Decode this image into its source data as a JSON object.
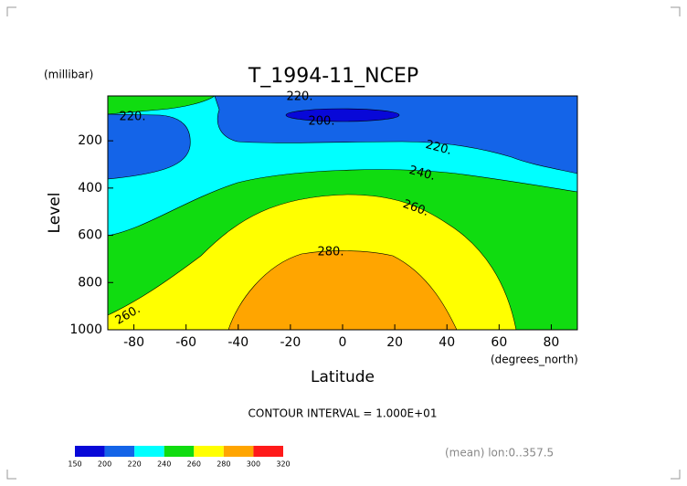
{
  "chart_data": {
    "type": "contour",
    "title": "T_1994-11_NCEP",
    "y_unit_label": "(millibar)",
    "ylabel": "Level",
    "xlabel": "Latitude",
    "x_unit_label": "(degrees_north)",
    "xlim": [
      -90,
      90
    ],
    "ylim": [
      1000,
      10
    ],
    "xticks": [
      -80,
      -60,
      -40,
      -20,
      0,
      20,
      40,
      60,
      80
    ],
    "yticks": [
      200,
      400,
      600,
      800,
      1000
    ],
    "contour_labels": [
      "220.",
      "220.",
      "200.",
      "220.",
      "240.",
      "260.",
      "280.",
      "260."
    ],
    "annotations": [
      "CONTOUR INTERVAL = 1.000E+01",
      "(mean) lon:0..357.5"
    ],
    "colorbar": {
      "levels": [
        150,
        200,
        220,
        240,
        260,
        280,
        300,
        320
      ],
      "colors": [
        "#0808d8",
        "#1464e8",
        "#00ffff",
        "#10dc10",
        "#ffff00",
        "#ffa500",
        "#ff1a1a"
      ]
    }
  }
}
